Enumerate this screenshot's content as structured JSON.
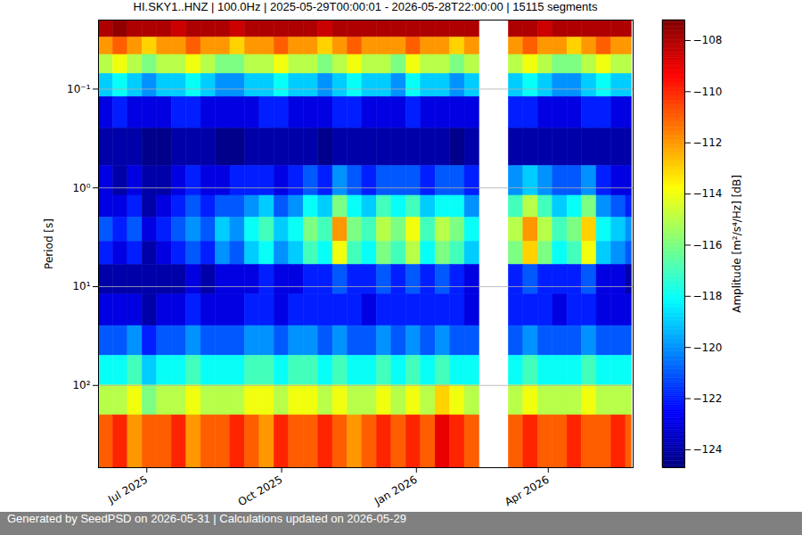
{
  "chart_data": {
    "type": "heatmap",
    "title": "HI.SKY1..HNZ | 100.0Hz | 2025-05-29T00:00:01 - 2026-05-28T22:00:00 | 15115 segments",
    "caption": "Generated by SeedPSD on 2026-05-31 | Calculations updated on 2026-05-29",
    "ylabel": "Period [s]",
    "log": "y",
    "grid": true,
    "xlim": [
      "2025-05-29T00:00:01Z",
      "2026-05-28T22:00:00Z"
    ],
    "xticks": [
      {
        "value": "2025-07-01",
        "label": "Jul 2025"
      },
      {
        "value": "2025-10-01",
        "label": "Oct 2025"
      },
      {
        "value": "2026-01-01",
        "label": "Jan 2026"
      },
      {
        "value": "2026-04-01",
        "label": "Apr 2026"
      }
    ],
    "ylim": [
      0.02,
      680
    ],
    "yticks": [
      {
        "value": 0.1,
        "label": "10⁻¹"
      },
      {
        "value": 1,
        "label": "10⁰"
      },
      {
        "value": 10,
        "label": "10¹"
      },
      {
        "value": 100,
        "label": "10²"
      }
    ],
    "colorbar": {
      "label": "Amplitude [m²/s⁴/Hz] [dB]",
      "lim": [
        -124.7,
        -107.2
      ],
      "ticks": [
        -124,
        -122,
        -120,
        -118,
        -116,
        -114,
        -112,
        -110,
        -108
      ]
    },
    "time_bins": [
      "2025-05-29",
      "2025-06-08",
      "2025-06-18",
      "2025-06-28",
      "2025-07-08",
      "2025-07-18",
      "2025-07-28",
      "2025-08-07",
      "2025-08-17",
      "2025-08-27",
      "2025-09-06",
      "2025-09-16",
      "2025-09-26",
      "2025-10-06",
      "2025-10-16",
      "2025-10-26",
      "2025-11-05",
      "2025-11-15",
      "2025-11-25",
      "2025-12-05",
      "2025-12-15",
      "2025-12-25",
      "2026-01-04",
      "2026-01-14",
      "2026-01-24",
      "2026-02-03",
      "2026-02-13",
      "2026-02-23",
      "2026-03-05",
      "2026-03-15",
      "2026-03-25",
      "2026-04-04",
      "2026-04-14",
      "2026-04-24",
      "2026-05-04",
      "2026-05-14",
      "2026-05-24",
      "2026-05-28"
    ],
    "period_bins": [
      0.02,
      0.03,
      0.045,
      0.07,
      0.12,
      0.25,
      0.6,
      1.2,
      2,
      3.5,
      6,
      12,
      25,
      50,
      100,
      200,
      680
    ],
    "cells": [
      [
        -108,
        -107.5,
        -108,
        -108,
        -108,
        -108.5,
        -108,
        -108,
        -108,
        -108.5,
        -108,
        -108,
        -108,
        -108,
        -108,
        -108.5,
        -108,
        -108,
        -108,
        -108,
        -108,
        -108,
        -108,
        -108,
        -108,
        -108,
        null,
        null,
        -108,
        -108,
        -108.5,
        -108,
        -108,
        -108,
        -108,
        -108,
        -108
      ],
      [
        -112,
        -111,
        -112,
        -113,
        -112,
        -112,
        -111,
        -112,
        -112,
        -113,
        -112,
        -112,
        -111,
        -112,
        -112,
        -113,
        -112,
        -111,
        -112,
        -112,
        -112,
        -111,
        -112,
        -112,
        -113,
        -112,
        null,
        null,
        -112,
        -111,
        -112,
        -112,
        -113,
        -112,
        -111,
        -112,
        -112
      ],
      [
        -115,
        -114,
        -115,
        -116,
        -115,
        -115,
        -114,
        -115,
        -116,
        -116,
        -115,
        -115,
        -114,
        -115,
        -115,
        -116,
        -115,
        -114,
        -115,
        -115,
        -116,
        -114,
        -115,
        -115,
        -116,
        -115,
        null,
        null,
        -115,
        -114,
        -115,
        -116,
        -116,
        -115,
        -114,
        -115,
        -115
      ],
      [
        -119,
        -118,
        -119,
        -120,
        -119,
        -119,
        -118,
        -119,
        -120,
        -120,
        -119,
        -119,
        -118,
        -119,
        -119,
        -120,
        -119,
        -118,
        -119,
        -119,
        -120,
        -118,
        -119,
        -119,
        -120,
        -119,
        null,
        null,
        -119,
        -118,
        -119,
        -120,
        -120,
        -119,
        -118,
        -119,
        -119
      ],
      [
        -123,
        -122,
        -123,
        -123,
        -123,
        -122,
        -122,
        -123,
        -123,
        -123,
        -123,
        -122,
        -122,
        -123,
        -123,
        -123,
        -122,
        -122,
        -123,
        -123,
        -123,
        -122,
        -123,
        -123,
        -123,
        -123,
        null,
        null,
        -122,
        -122,
        -123,
        -123,
        -123,
        -122,
        -122,
        -123,
        -123
      ],
      [
        -124,
        -124,
        -124,
        -124.5,
        -124.5,
        -124,
        -124,
        -124,
        -124.5,
        -124.5,
        -124,
        -124,
        -124,
        -124,
        -124,
        -124.5,
        -124,
        -124,
        -124,
        -124,
        -124,
        -124,
        -124,
        -124,
        -124.5,
        -124,
        null,
        null,
        -124,
        -124,
        -124,
        -124,
        -124,
        -124,
        -124,
        -124,
        -124
      ],
      [
        -123,
        -124,
        -123,
        -124,
        -124,
        -123,
        -122,
        -123,
        -123,
        -122,
        -122,
        -122,
        -123,
        -122,
        -121,
        -122,
        -120,
        -121,
        -122,
        -121,
        -121,
        -121,
        -122,
        -121,
        -121,
        -122,
        null,
        null,
        -120,
        -119,
        -120,
        -121,
        -121,
        -120,
        -122,
        -123,
        -123
      ],
      [
        -123,
        -123,
        -122,
        -124,
        -123,
        -122,
        -121,
        -122,
        -121,
        -121,
        -120,
        -119,
        -121,
        -120,
        -118,
        -119,
        -116,
        -118,
        -119,
        -117,
        -118,
        -117,
        -119,
        -118,
        -118,
        -120,
        null,
        null,
        -117,
        -115,
        -117,
        -119,
        -118,
        -116,
        -120,
        -121,
        -122
      ],
      [
        -121,
        -122,
        -121,
        -123,
        -122,
        -121,
        -120,
        -121,
        -119,
        -120,
        -118,
        -117,
        -119,
        -118,
        -116,
        -117,
        -112,
        -116,
        -117,
        -115,
        -116,
        -114,
        -117,
        -115,
        -116,
        -118,
        null,
        null,
        -115,
        -112,
        -115,
        -117,
        -116,
        -113,
        -118,
        -119,
        -120
      ],
      [
        -122,
        -123,
        -122,
        -124,
        -123,
        -122,
        -121,
        -122,
        -120,
        -121,
        -119,
        -118,
        -120,
        -119,
        -117,
        -118,
        -114,
        -117,
        -118,
        -116,
        -117,
        -115,
        -118,
        -116,
        -117,
        -119,
        null,
        null,
        -116,
        -113,
        -116,
        -118,
        -117,
        -114,
        -119,
        -120,
        -121
      ],
      [
        -124,
        -124,
        -124,
        -124,
        -124,
        -124,
        -123,
        -124,
        -123,
        -123,
        -123,
        -122,
        -123,
        -123,
        -122,
        -122,
        -121,
        -122,
        -122,
        -121,
        -122,
        -121,
        -122,
        -121,
        -122,
        -123,
        null,
        null,
        -122,
        -121,
        -122,
        -122,
        -122,
        -121,
        -123,
        -123,
        -124
      ],
      [
        -123,
        -123,
        -123,
        -124,
        -123,
        -123,
        -122,
        -123,
        -123,
        -123,
        -122,
        -122,
        -123,
        -122,
        -122,
        -122,
        -122,
        -122,
        -123,
        -122,
        -122,
        -122,
        -122,
        -122,
        -122,
        -123,
        null,
        null,
        -122,
        -122,
        -122,
        -123,
        -122,
        -122,
        -123,
        -123,
        -123
      ],
      [
        -121,
        -121,
        -120,
        -122,
        -121,
        -121,
        -120,
        -121,
        -121,
        -121,
        -120,
        -120,
        -121,
        -120,
        -120,
        -121,
        -120,
        -121,
        -121,
        -120,
        -121,
        -120,
        -121,
        -120,
        -121,
        -121,
        null,
        null,
        -121,
        -120,
        -121,
        -121,
        -121,
        -120,
        -121,
        -121,
        -121
      ],
      [
        -118,
        -118,
        -117,
        -119,
        -118,
        -118,
        -117,
        -118,
        -118,
        -118,
        -117,
        -117,
        -118,
        -117,
        -117,
        -118,
        -117,
        -118,
        -118,
        -117,
        -118,
        -117,
        -118,
        -117,
        -118,
        -118,
        null,
        null,
        -118,
        -117,
        -118,
        -118,
        -118,
        -117,
        -118,
        -118,
        -118
      ],
      [
        -115,
        -115,
        -114,
        -116,
        -115,
        -115,
        -114,
        -115,
        -115,
        -115,
        -114,
        -114,
        -115,
        -114,
        -114,
        -115,
        -114,
        -115,
        -115,
        -114,
        -115,
        -114,
        -115,
        -113,
        -114,
        -115,
        null,
        null,
        -115,
        -114,
        -115,
        -115,
        -115,
        -114,
        -115,
        -115,
        -115
      ],
      [
        -111,
        -110,
        -112,
        -111,
        -111,
        -110,
        -112,
        -111,
        -111,
        -110,
        -111,
        -112,
        -110,
        -111,
        -111,
        -110,
        -111,
        -112,
        -111,
        -110,
        -111,
        -110,
        -111,
        -109,
        -110,
        -111,
        null,
        null,
        -111,
        -110,
        -111,
        -111,
        -110,
        -111,
        -111,
        -110,
        -111
      ]
    ]
  }
}
